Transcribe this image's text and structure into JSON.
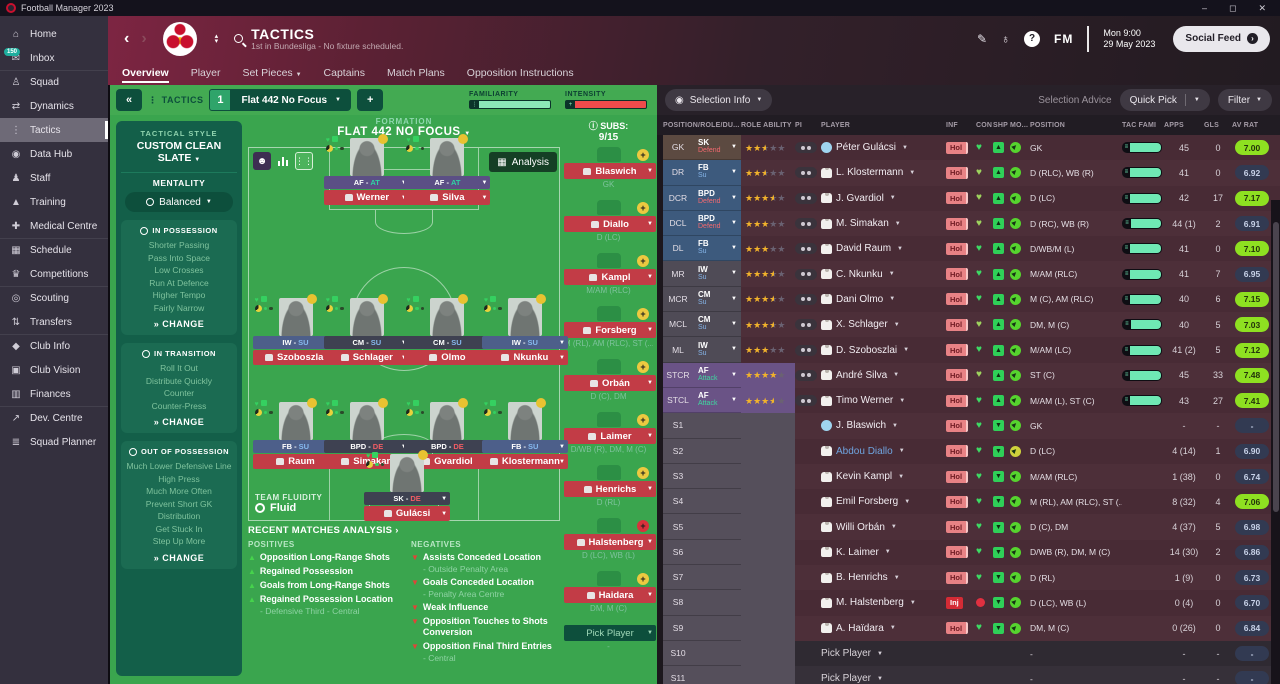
{
  "window": {
    "title": "Football Manager 2023",
    "minimize": "–",
    "maximize": "◻",
    "close": "✕"
  },
  "sidebar": {
    "items": [
      {
        "label": "Home",
        "icon": "home"
      },
      {
        "label": "Inbox",
        "icon": "inbox",
        "badge": "150"
      },
      {
        "label": "Squad",
        "icon": "squad",
        "divider": true
      },
      {
        "label": "Dynamics",
        "icon": "dynamics"
      },
      {
        "label": "Tactics",
        "icon": "tactics",
        "active": true
      },
      {
        "label": "Data Hub",
        "icon": "datahub"
      },
      {
        "label": "Staff",
        "icon": "staff"
      },
      {
        "label": "Training",
        "icon": "training"
      },
      {
        "label": "Medical Centre",
        "icon": "medical"
      },
      {
        "label": "Schedule",
        "icon": "schedule",
        "divider": true
      },
      {
        "label": "Competitions",
        "icon": "competitions"
      },
      {
        "label": "Scouting",
        "icon": "scouting",
        "divider": true
      },
      {
        "label": "Transfers",
        "icon": "transfers"
      },
      {
        "label": "Club Info",
        "icon": "clubinfo",
        "divider": true
      },
      {
        "label": "Club Vision",
        "icon": "clubvision"
      },
      {
        "label": "Finances",
        "icon": "finances"
      },
      {
        "label": "Dev. Centre",
        "icon": "devcentre",
        "divider": true
      },
      {
        "label": "Squad Planner",
        "icon": "squadplanner"
      }
    ]
  },
  "header": {
    "title": "TACTICS",
    "subtitle": "1st in Bundesliga - No fixture scheduled.",
    "clock_day": "Mon 9:00",
    "clock_date": "29 May 2023",
    "help": "?",
    "fm": "FM",
    "social_feed": "Social Feed",
    "tabs": [
      {
        "label": "Overview",
        "active": true
      },
      {
        "label": "Player"
      },
      {
        "label": "Set Pieces",
        "chevron": true
      },
      {
        "label": "Captains"
      },
      {
        "label": "Match Plans"
      },
      {
        "label": "Opposition Instructions"
      }
    ]
  },
  "tactics": {
    "bar": {
      "collapse": "«",
      "label": "TACTICS",
      "slot": "1",
      "preset": "Flat 442 No Focus",
      "add": "+",
      "familiarity_label": "FAMILIARITY",
      "intensity_label": "INTENSITY",
      "familiarity_pct": 97,
      "intensity_pct": 96,
      "familiarity_color": "#8ce8b8",
      "intensity_color": "#ef4b4b"
    },
    "style": {
      "style_label": "TACTICAL STYLE",
      "style_value": "CUSTOM CLEAN SLATE",
      "mentality_label": "MENTALITY",
      "mentality_value": "Balanced",
      "groups": [
        {
          "title": "IN POSSESSION",
          "items": [
            "Shorter Passing",
            "Pass Into Space",
            "Low Crosses",
            "Run At Defence",
            "Higher Tempo",
            "Fairly Narrow"
          ],
          "change": "CHANGE"
        },
        {
          "title": "IN TRANSITION",
          "items": [
            "Roll It Out",
            "Distribute Quickly",
            "Counter",
            "Counter-Press"
          ],
          "change": "CHANGE"
        },
        {
          "title": "OUT OF POSSESSION",
          "items": [
            "Much Lower Defensive Line",
            "High Press",
            "Much More Often",
            "Prevent Short GK Distribution",
            "Get Stuck In",
            "Step Up More"
          ],
          "change": "CHANGE"
        }
      ]
    },
    "formation": {
      "label": "FORMATION",
      "name": "FLAT 442 NO FOCUS",
      "analysis_label": "Analysis",
      "fluidity_label": "TEAM FLUIDITY",
      "fluidity_value": "Fluid",
      "players": [
        {
          "name": "Werner",
          "role": "AF",
          "duty": "AT",
          "duty_class": "attack",
          "color": "purple",
          "line": "ST",
          "x": 38
        },
        {
          "name": "Silva",
          "role": "AF",
          "duty": "AT",
          "duty_class": "attack",
          "color": "purple",
          "line": "ST",
          "x": 64
        },
        {
          "name": "Szoboszlai",
          "role": "IW",
          "duty": "SU",
          "duty_class": "support",
          "color": "blue",
          "line": "M",
          "x": 15
        },
        {
          "name": "Schlager",
          "role": "CM",
          "duty": "SU",
          "duty_class": "support",
          "color": "dark",
          "line": "M",
          "x": 38
        },
        {
          "name": "Olmo",
          "role": "CM",
          "duty": "SU",
          "duty_class": "support",
          "color": "dark",
          "line": "M",
          "x": 64
        },
        {
          "name": "Nkunku",
          "role": "IW",
          "duty": "SU",
          "duty_class": "support",
          "color": "blue",
          "line": "M",
          "x": 89
        },
        {
          "name": "Raum",
          "role": "FB",
          "duty": "SU",
          "duty_class": "support",
          "color": "blue",
          "line": "D",
          "x": 15
        },
        {
          "name": "Simakan",
          "role": "BPD",
          "duty": "DE",
          "duty_class": "defend",
          "color": "dark",
          "line": "D",
          "x": 38
        },
        {
          "name": "Gvardiol",
          "role": "BPD",
          "duty": "DE",
          "duty_class": "defend",
          "color": "dark",
          "line": "D",
          "x": 64
        },
        {
          "name": "Klostermann",
          "role": "FB",
          "duty": "SU",
          "duty_class": "support",
          "color": "blue",
          "line": "D",
          "x": 89
        },
        {
          "name": "Gulácsi",
          "role": "SK",
          "duty": "DE",
          "duty_class": "defend",
          "color": "dark",
          "line": "GK",
          "x": 51
        }
      ]
    },
    "subs": {
      "label": "SUBS:",
      "count": "9/15",
      "items": [
        {
          "name": "Blaswich",
          "pos": "GK"
        },
        {
          "name": "Diallo",
          "pos": "D (LC)"
        },
        {
          "name": "Kampl",
          "pos": "M/AM (RLC)"
        },
        {
          "name": "Forsberg",
          "pos": "M (RL), AM (RLC), ST (..."
        },
        {
          "name": "Orbán",
          "pos": "D (C), DM"
        },
        {
          "name": "Laimer",
          "pos": "D/WB (R), DM, M (C)"
        },
        {
          "name": "Henrichs",
          "pos": "D (RL)"
        },
        {
          "name": "Halstenberg",
          "pos": "D (LC), WB (L)",
          "status": "injured"
        },
        {
          "name": "Haidara",
          "pos": "DM, M (C)"
        },
        {
          "name": "Pick Player",
          "pos": "-",
          "pick": true
        }
      ]
    },
    "analysis": {
      "title": "RECENT MATCHES ANALYSIS ›",
      "positives_label": "POSITIVES",
      "negatives_label": "NEGATIVES",
      "positives": [
        {
          "text": "Opposition Long-Range Shots"
        },
        {
          "text": "Regained Possession"
        },
        {
          "text": "Goals from Long-Range Shots"
        },
        {
          "text": "Regained Possession Location",
          "note": "- Defensive Third - Central"
        }
      ],
      "negatives": [
        {
          "text": "Assists Conceded Location",
          "note": "- Outside Penalty Area"
        },
        {
          "text": "Goals Conceded Location",
          "note": "- Penalty Area Centre"
        },
        {
          "text": "Weak Influence"
        },
        {
          "text": "Opposition Touches to Shots Conversion"
        },
        {
          "text": "Opposition Final Third Entries",
          "note": "- Central"
        }
      ]
    }
  },
  "squad": {
    "toolbar": {
      "selection_info": "Selection Info",
      "selection_advice": "Selection Advice",
      "quick_pick": "Quick Pick",
      "filter": "Filter"
    },
    "columns": [
      "POSITION/ROLE/DU... ▲",
      "ROLE ABILITY",
      "PI",
      "PLAYER",
      "INF",
      "CON",
      "SHP",
      "MO...",
      "POSITION",
      "TAC FAMI",
      "APPS",
      "GLS",
      "AV RAT"
    ],
    "rows": [
      {
        "slot": "GK",
        "type": "gk",
        "role": "SK",
        "duty": "Defend",
        "duty_class": "defend",
        "stars": 2.5,
        "player": "Péter Gulácsi",
        "gk": true,
        "inf": "Hol",
        "con": "green",
        "shp": "up",
        "mor": "green",
        "position": "GK",
        "fami": 96,
        "apps": "45",
        "gls": "0",
        "rat": "7.00",
        "rat_class": "good"
      },
      {
        "slot": "DR",
        "type": "def",
        "role": "FB",
        "duty": "Su",
        "duty_class": "support",
        "stars": 2.5,
        "player": "L. Klostermann",
        "inf": "Hol",
        "con": "light",
        "shp": "up",
        "mor": "green",
        "position": "D (RLC), WB (R)",
        "fami": 96,
        "apps": "41",
        "gls": "0",
        "rat": "6.92",
        "rat_class": "dim"
      },
      {
        "slot": "DCR",
        "type": "def",
        "role": "BPD",
        "duty": "Defend",
        "duty_class": "defend",
        "stars": 3.5,
        "player": "J. Gvardiol",
        "inf": "Hol",
        "con": "light",
        "shp": "up",
        "mor": "green",
        "position": "D (LC)",
        "fami": 96,
        "apps": "42",
        "gls": "17",
        "rat": "7.17",
        "rat_class": "good"
      },
      {
        "slot": "DCL",
        "type": "def",
        "role": "BPD",
        "duty": "Defend",
        "duty_class": "defend",
        "stars": 3,
        "player": "M. Simakan",
        "inf": "Hol",
        "con": "light",
        "shp": "up",
        "mor": "green",
        "position": "D (RC), WB (R)",
        "fami": 78,
        "apps": "44 (1)",
        "gls": "2",
        "rat": "6.91",
        "rat_class": "dim"
      },
      {
        "slot": "DL",
        "type": "def",
        "role": "FB",
        "duty": "Su",
        "duty_class": "support",
        "stars": 3,
        "player": "David Raum",
        "inf": "Hol",
        "con": "green",
        "shp": "up",
        "mor": "green",
        "position": "D/WB/M (L)",
        "fami": 96,
        "apps": "41",
        "gls": "0",
        "rat": "7.10",
        "rat_class": "good"
      },
      {
        "slot": "MR",
        "type": "mid",
        "role": "IW",
        "duty": "Su",
        "duty_class": "support",
        "stars": 3.5,
        "player": "C. Nkunku",
        "inf": "Hol",
        "con": "green",
        "shp": "up",
        "mor": "green",
        "position": "M/AM (RLC)",
        "fami": 90,
        "apps": "41",
        "gls": "7",
        "rat": "6.95",
        "rat_class": "dim"
      },
      {
        "slot": "MCR",
        "type": "mid",
        "role": "CM",
        "duty": "Su",
        "duty_class": "support",
        "stars": 3.5,
        "player": "Dani Olmo",
        "inf": "Hol",
        "con": "green",
        "shp": "up",
        "mor": "green",
        "position": "M (C), AM (RLC)",
        "fami": 96,
        "apps": "40",
        "gls": "6",
        "rat": "7.15",
        "rat_class": "good"
      },
      {
        "slot": "MCL",
        "type": "mid",
        "role": "CM",
        "duty": "Su",
        "duty_class": "support",
        "stars": 3.5,
        "player": "X. Schlager",
        "inf": "Hol",
        "con": "light",
        "shp": "up",
        "mor": "green",
        "position": "DM, M (C)",
        "fami": 82,
        "apps": "40",
        "gls": "5",
        "rat": "7.03",
        "rat_class": "good"
      },
      {
        "slot": "ML",
        "type": "mid",
        "role": "IW",
        "duty": "Su",
        "duty_class": "support",
        "stars": 3,
        "player": "D. Szoboszlai",
        "inf": "Hol",
        "con": "green",
        "shp": "up",
        "mor": "green",
        "position": "M/AM (LC)",
        "fami": 96,
        "apps": "41 (2)",
        "gls": "5",
        "rat": "7.12",
        "rat_class": "good"
      },
      {
        "slot": "STCR",
        "type": "st",
        "role": "AF",
        "duty": "Attack",
        "duty_class": "attack",
        "stars": 4,
        "player": "André Silva",
        "inf": "Hol",
        "con": "light",
        "shp": "up",
        "mor": "green",
        "position": "ST (C)",
        "fami": 88,
        "apps": "45",
        "gls": "33",
        "rat": "7.48",
        "rat_class": "good"
      },
      {
        "slot": "STCL",
        "type": "st",
        "role": "AF",
        "duty": "Attack",
        "duty_class": "attack",
        "stars": 3.5,
        "player": "Timo Werner",
        "inf": "Hol",
        "con": "green",
        "shp": "up",
        "mor": "green",
        "position": "M/AM (L), ST (C)",
        "fami": 96,
        "apps": "43",
        "gls": "27",
        "rat": "7.41",
        "rat_class": "good"
      },
      {
        "slot": "S1",
        "type": "sub",
        "player": "J. Blaswich",
        "gk": true,
        "inf": "Hol",
        "con": "green",
        "shp": "down",
        "mor": "green",
        "position": "GK",
        "apps": "-",
        "gls": "-",
        "rat": "-",
        "rat_class": "none"
      },
      {
        "slot": "S2",
        "type": "sub",
        "player": "Abdou Diallo",
        "loan": true,
        "inf": "Hol",
        "con": "green",
        "shp": "down",
        "mor": "yellow",
        "position": "D (LC)",
        "apps": "4 (14)",
        "gls": "1",
        "rat": "6.90",
        "rat_class": "dim"
      },
      {
        "slot": "S3",
        "type": "sub",
        "player": "Kevin Kampl",
        "inf": "Hol",
        "con": "green",
        "shp": "down",
        "mor": "green",
        "position": "M/AM (RLC)",
        "apps": "1 (38)",
        "gls": "0",
        "rat": "6.74",
        "rat_class": "dim"
      },
      {
        "slot": "S4",
        "type": "sub",
        "player": "Emil Forsberg",
        "inf": "Hol",
        "con": "green",
        "shp": "down",
        "mor": "green",
        "position": "M (RL), AM (RLC), ST (...",
        "apps": "8 (32)",
        "gls": "4",
        "rat": "7.06",
        "rat_class": "good"
      },
      {
        "slot": "S5",
        "type": "sub",
        "player": "Willi Orbán",
        "inf": "Hol",
        "con": "green",
        "shp": "down",
        "mor": "green",
        "position": "D (C), DM",
        "apps": "4 (37)",
        "gls": "5",
        "rat": "6.98",
        "rat_class": "dim"
      },
      {
        "slot": "S6",
        "type": "sub",
        "player": "K. Laimer",
        "inf": "Hol",
        "con": "green",
        "shp": "down",
        "mor": "green",
        "position": "D/WB (R), DM, M (C)",
        "apps": "14 (30)",
        "gls": "2",
        "rat": "6.86",
        "rat_class": "dim"
      },
      {
        "slot": "S7",
        "type": "sub",
        "player": "B. Henrichs",
        "inf": "Hol",
        "con": "green",
        "shp": "down",
        "mor": "green",
        "position": "D (RL)",
        "apps": "1 (9)",
        "gls": "0",
        "rat": "6.73",
        "rat_class": "dim"
      },
      {
        "slot": "S8",
        "type": "sub",
        "player": "M. Halstenberg",
        "inf": "Inj",
        "con": "red",
        "shp": "down",
        "mor": "green",
        "position": "D (LC), WB (L)",
        "apps": "0 (4)",
        "gls": "0",
        "rat": "6.70",
        "rat_class": "dim"
      },
      {
        "slot": "S9",
        "type": "sub",
        "player": "A. Haïdara",
        "inf": "Hol",
        "con": "green",
        "shp": "down",
        "mor": "green",
        "position": "DM, M (C)",
        "apps": "0 (26)",
        "gls": "0",
        "rat": "6.84",
        "rat_class": "dim"
      },
      {
        "slot": "S10",
        "type": "pick",
        "player": "Pick Player",
        "position": "-",
        "apps": "-",
        "gls": "-",
        "rat": "-",
        "rat_class": "none"
      },
      {
        "slot": "S11",
        "type": "pick",
        "player": "Pick Player",
        "position": "-",
        "apps": "-",
        "gls": "-",
        "rat": "-",
        "rat_class": "none"
      }
    ]
  }
}
